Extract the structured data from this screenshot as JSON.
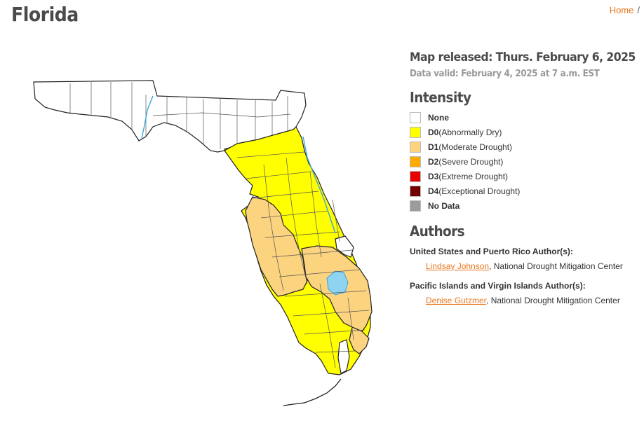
{
  "page": {
    "title": "Florida",
    "breadcrumb_home": "Home",
    "breadcrumb_sep": "/"
  },
  "map": {
    "release": "Map released: Thurs. February 6, 2025",
    "valid": "Data valid: February 4, 2025 at 7 a.m. EST",
    "colors": {
      "none": "#ffffff",
      "d0": "#ffff00",
      "d1": "#fcd37f",
      "water": "#8ed3f0",
      "river": "#3aa6e0",
      "county_border": "#555555"
    }
  },
  "intensity": {
    "title": "Intensity",
    "items": [
      {
        "label": "None",
        "code": "",
        "desc": "",
        "color": "#ffffff"
      },
      {
        "label": "",
        "code": "D0",
        "desc": "(Abnormally Dry)",
        "color": "#ffff00"
      },
      {
        "label": "",
        "code": "D1",
        "desc": "(Moderate Drought)",
        "color": "#fcd37f"
      },
      {
        "label": "",
        "code": "D2",
        "desc": "(Severe Drought)",
        "color": "#ffaa00"
      },
      {
        "label": "",
        "code": "D3",
        "desc": "(Extreme Drought)",
        "color": "#e60000"
      },
      {
        "label": "",
        "code": "D4",
        "desc": "(Exceptional Drought)",
        "color": "#730000"
      },
      {
        "label": "No Data",
        "code": "",
        "desc": "",
        "color": "#9b9b9b"
      }
    ]
  },
  "authors": {
    "title": "Authors",
    "groups": [
      {
        "heading": "United States and Puerto Rico Author(s):",
        "name": "Lindsay Johnson",
        "org": ", National Drought Mitigation Center"
      },
      {
        "heading": "Pacific Islands and Virgin Islands Author(s):",
        "name": "Denise Gutzmer",
        "org": ", National Drought Mitigation Center"
      }
    ]
  }
}
